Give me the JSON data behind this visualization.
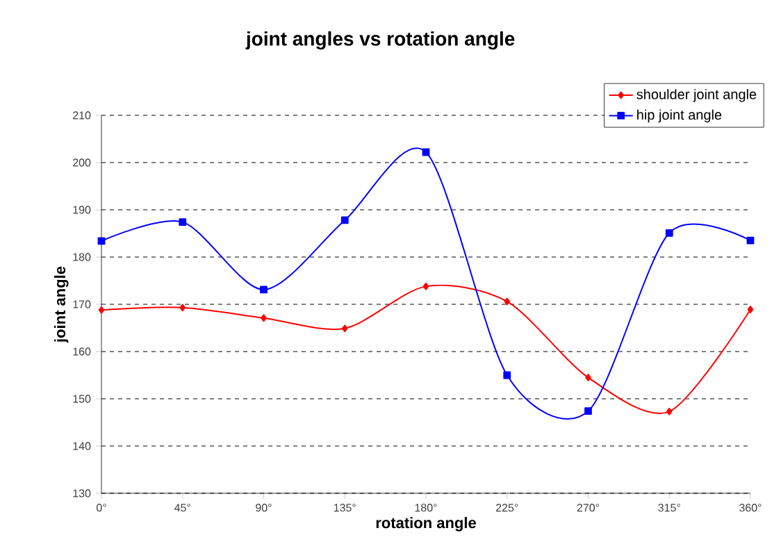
{
  "chart_data": {
    "type": "line",
    "title": "joint angles vs rotation angle",
    "xlabel": "rotation angle",
    "ylabel": "joint angle",
    "categories": [
      "0°",
      "45°",
      "90°",
      "135°",
      "180°",
      "225°",
      "270°",
      "315°",
      "360°"
    ],
    "series": [
      {
        "name": "shoulder joint angle",
        "color": "#ff0000",
        "marker": "diamond",
        "values": [
          168.8,
          169.3,
          167.1,
          164.9,
          173.8,
          170.6,
          154.5,
          147.3,
          168.9
        ]
      },
      {
        "name": "hip joint angle",
        "color": "#0000ff",
        "marker": "square",
        "values": [
          183.4,
          187.4,
          173.1,
          187.8,
          202.2,
          155,
          147.4,
          185.1,
          183.5
        ]
      }
    ],
    "ylim": [
      130,
      210
    ],
    "yticks": [
      130,
      140,
      150,
      160,
      170,
      180,
      190,
      200,
      210
    ],
    "grid": "y",
    "legend": "top right",
    "line_style": "solid"
  }
}
